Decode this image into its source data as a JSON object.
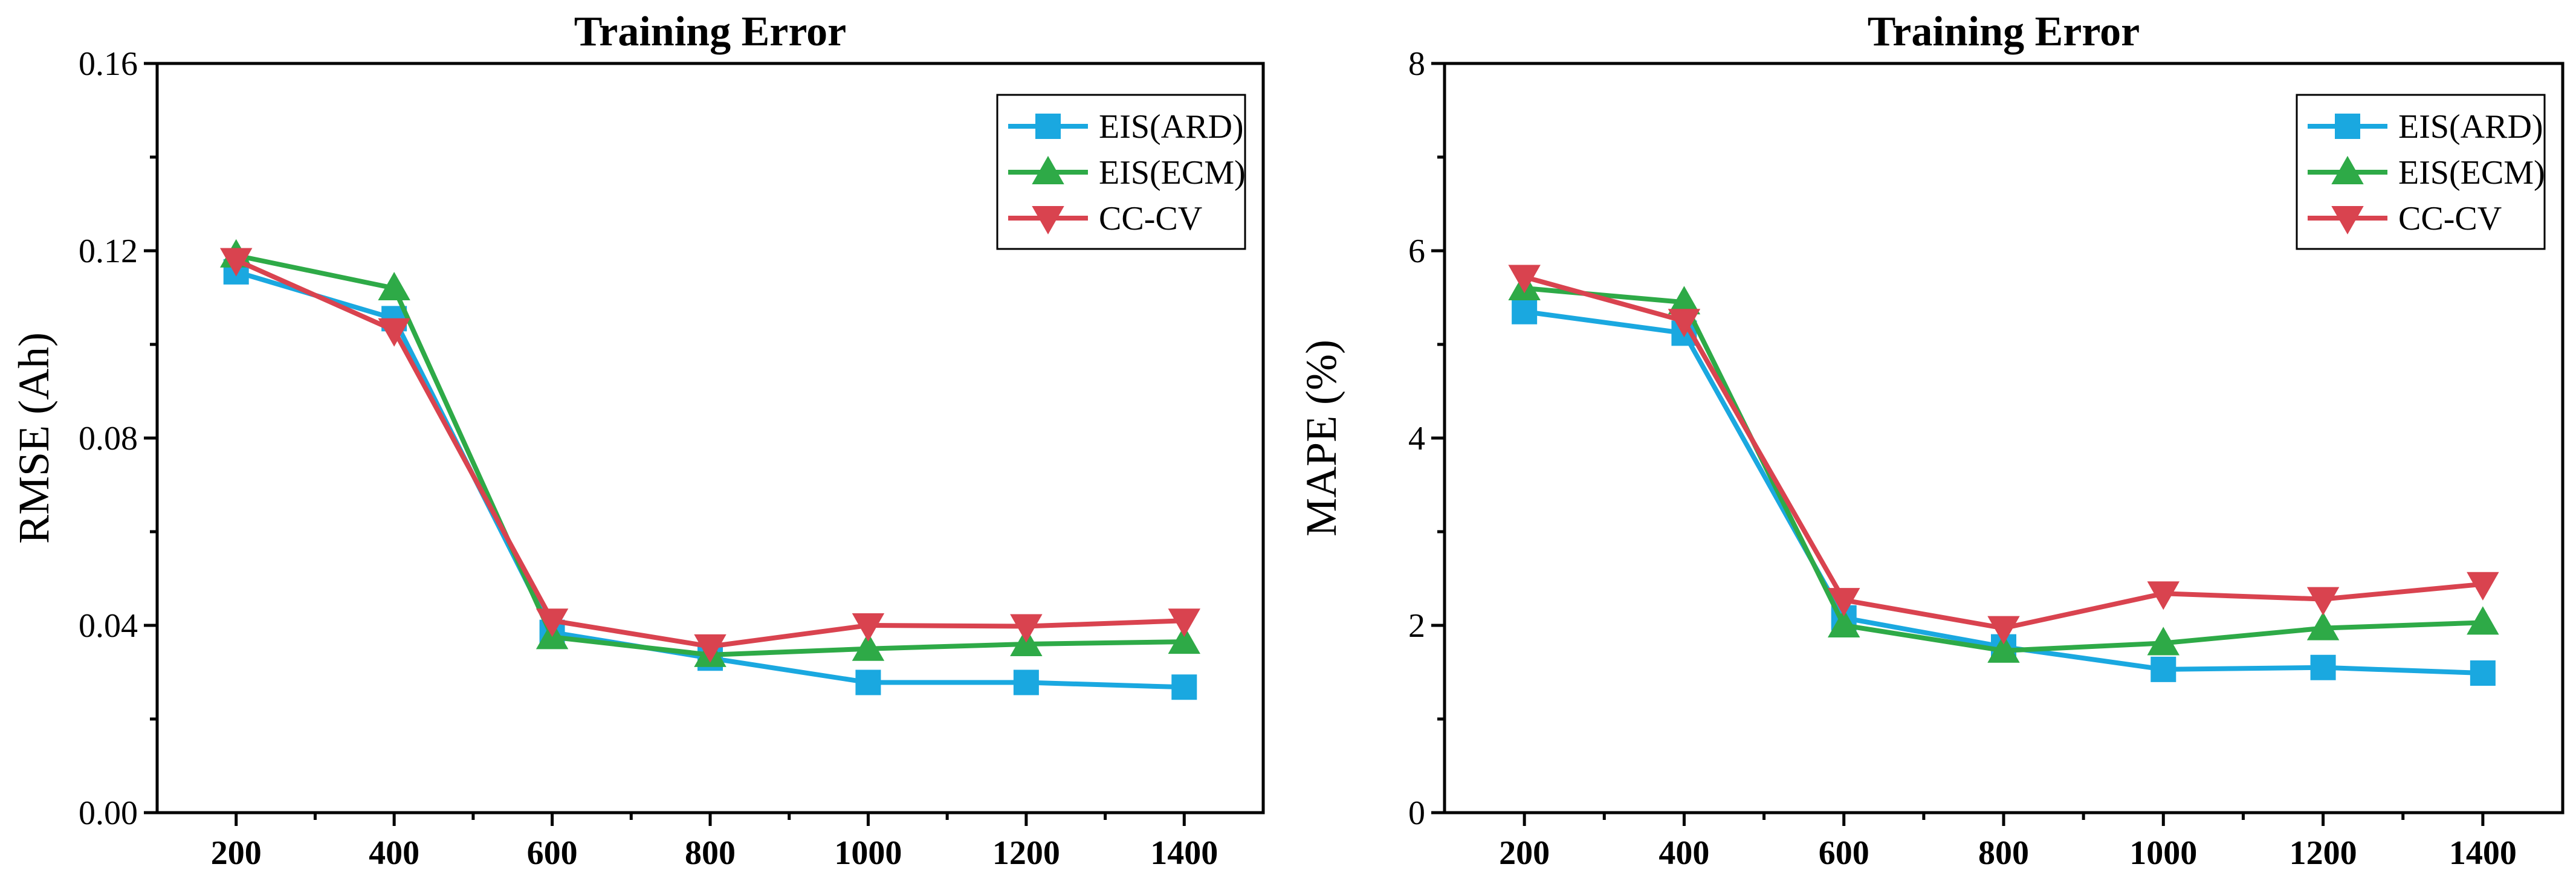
{
  "chart_data": [
    {
      "type": "line",
      "title": "Training  Error",
      "xlabel": "",
      "ylabel": "RMSE (Ah)",
      "x": [
        200,
        400,
        600,
        800,
        1000,
        1200,
        1400
      ],
      "xlim": [
        100,
        1500
      ],
      "ylim": [
        0,
        0.16
      ],
      "yticks": [
        0.0,
        0.04,
        0.08,
        0.12,
        0.16
      ],
      "ytick_labels": [
        "0.00",
        "0.04",
        "0.08",
        "0.12",
        "0.16"
      ],
      "xtick_labels": [
        "200",
        "400",
        "600",
        "800",
        "1000",
        "1200",
        "1400"
      ],
      "legend_position": "top-right",
      "series": [
        {
          "name": "EIS(ARD)",
          "marker": "square",
          "color": "#1aa8e0",
          "values": [
            0.1155,
            0.1055,
            0.0385,
            0.033,
            0.0278,
            0.0278,
            0.0268
          ]
        },
        {
          "name": "EIS(ECM)",
          "marker": "triangle-up",
          "color": "#2eaa47",
          "values": [
            0.119,
            0.112,
            0.0375,
            0.0337,
            0.035,
            0.036,
            0.0365
          ]
        },
        {
          "name": "CC-CV",
          "marker": "triangle-down",
          "color": "#d9434f",
          "values": [
            0.118,
            0.103,
            0.041,
            0.0355,
            0.04,
            0.0398,
            0.041
          ]
        }
      ]
    },
    {
      "type": "line",
      "title": "Training  Error",
      "xlabel": "",
      "ylabel": "MAPE (%)",
      "x": [
        200,
        400,
        600,
        800,
        1000,
        1200,
        1400
      ],
      "xlim": [
        100,
        1500
      ],
      "ylim": [
        0,
        8
      ],
      "yticks": [
        0,
        2,
        4,
        6,
        8
      ],
      "ytick_labels": [
        "0",
        "2",
        "4",
        "6",
        "8"
      ],
      "xtick_labels": [
        "200",
        "400",
        "600",
        "800",
        "1000",
        "1200",
        "1400"
      ],
      "legend_position": "top-right",
      "series": [
        {
          "name": "EIS(ARD)",
          "marker": "square",
          "color": "#1aa8e0",
          "values": [
            5.35,
            5.12,
            2.08,
            1.77,
            1.53,
            1.55,
            1.49
          ]
        },
        {
          "name": "EIS(ECM)",
          "marker": "triangle-up",
          "color": "#2eaa47",
          "values": [
            5.6,
            5.45,
            2.0,
            1.73,
            1.81,
            1.97,
            2.03
          ]
        },
        {
          "name": "CC-CV",
          "marker": "triangle-down",
          "color": "#d9434f",
          "values": [
            5.72,
            5.25,
            2.27,
            1.97,
            2.34,
            2.28,
            2.44
          ]
        }
      ]
    }
  ]
}
